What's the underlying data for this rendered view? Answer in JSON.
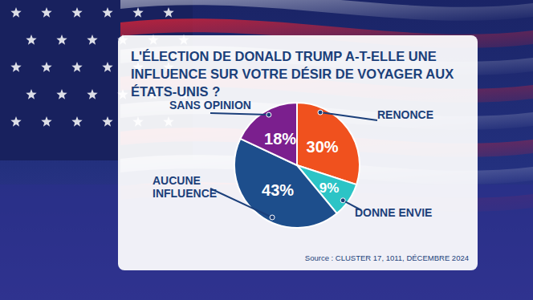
{
  "chart_data": {
    "type": "pie",
    "title": "L'ÉLECTION DE DONALD TRUMP A-T-ELLE UNE INFLUENCE SUR VOTRE DÉSIR DE VOYAGER AUX ÉTATS-UNIS ?",
    "categories": [
      "RENONCE",
      "DONNE ENVIE",
      "AUCUNE INFLUENCE",
      "SANS OPINION"
    ],
    "values": [
      30,
      9,
      43,
      18
    ],
    "value_labels": [
      "30%",
      "9%",
      "43%",
      "18%"
    ],
    "colors": [
      "#f0511e",
      "#2cc4c6",
      "#1d4e8c",
      "#7b1f8e"
    ],
    "data_labels": true,
    "source": "Source : CLUSTER 17, 1011, DÉCEMBRE 2024"
  }
}
